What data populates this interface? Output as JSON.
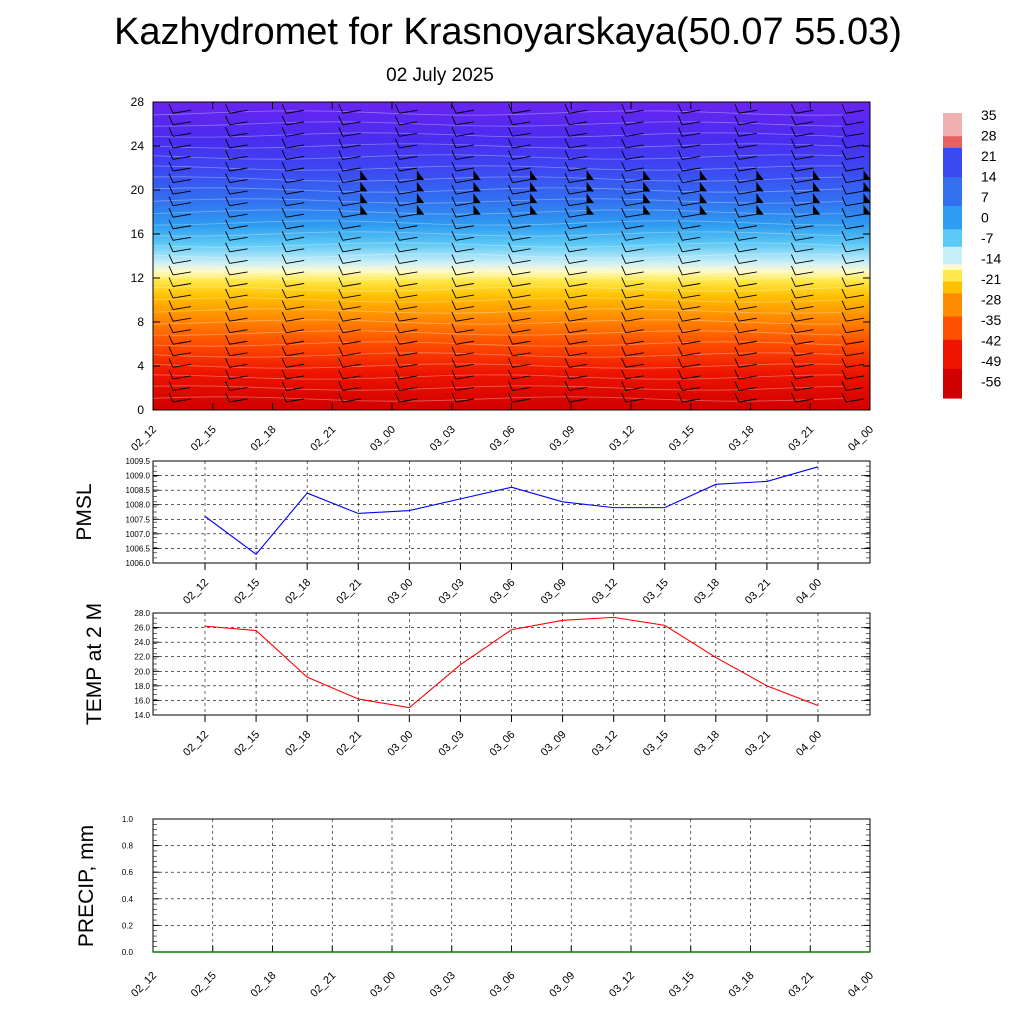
{
  "title": "Kazhydromet for Krasnoyarskaya(50.07 55.03)",
  "subtitle": "02 July 2025",
  "chart_data": [
    {
      "type": "heatmap",
      "x_ticks": [
        "02_12",
        "02_15",
        "02_18",
        "02_21",
        "03_00",
        "03_03",
        "03_06",
        "03_09",
        "03_12",
        "03_15",
        "03_18",
        "03_21",
        "04_00"
      ],
      "y_ticks": [
        0,
        4,
        8,
        12,
        16,
        20,
        24,
        28
      ],
      "ylim": [
        0,
        28
      ],
      "colorbar": {
        "labels": [
          "35",
          "28",
          "21",
          "14",
          "7",
          "0",
          "-7",
          "-14",
          "-21",
          "-28",
          "-35",
          "-42",
          "-49",
          "-56"
        ],
        "range": [
          -60,
          38
        ]
      },
      "colors": [
        "#6a1cf0",
        "#3f3ff2",
        "#2f6cf0",
        "#2f9ff0",
        "#33c3f2",
        "#8fdcf5",
        "#e8f4d8",
        "#fff27a",
        "#ffd21e",
        "#ffaa0a",
        "#ff7a00",
        "#ff4a00",
        "#f01a00",
        "#d80800",
        "#c80000"
      ]
    },
    {
      "type": "line",
      "ylabel": "PMSL",
      "categories": [
        "02_12",
        "02_15",
        "02_18",
        "02_21",
        "03_00",
        "03_03",
        "03_06",
        "03_09",
        "03_12",
        "03_15",
        "03_18",
        "03_21",
        "04_00"
      ],
      "values": [
        1007.6,
        1006.3,
        1008.4,
        1007.7,
        1007.8,
        1008.2,
        1008.6,
        1008.1,
        1007.9,
        1007.9,
        1008.7,
        1008.8,
        1009.3
      ],
      "y_ticks": [
        "1006.0",
        "1006.5",
        "1007.0",
        "1007.5",
        "1008.0",
        "1008.5",
        "1009.0",
        "1009.5"
      ],
      "ylim": [
        1006.0,
        1009.5
      ],
      "color": "#0000ff"
    },
    {
      "type": "line",
      "ylabel": "TEMP at 2 M",
      "categories": [
        "02_12",
        "02_15",
        "02_18",
        "02_21",
        "03_00",
        "03_03",
        "03_06",
        "03_09",
        "03_12",
        "03_15",
        "03_18",
        "03_21",
        "04_00"
      ],
      "values": [
        26.2,
        25.6,
        19.2,
        16.2,
        15.0,
        20.9,
        25.7,
        27.0,
        27.4,
        26.3,
        21.9,
        18.0,
        15.3
      ],
      "y_ticks": [
        "14.0",
        "16.0",
        "18.0",
        "20.0",
        "22.0",
        "24.0",
        "26.0",
        "28.0"
      ],
      "ylim": [
        14.0,
        28.0
      ],
      "color": "#ff0000"
    },
    {
      "type": "line",
      "ylabel": "PRECIP, mm",
      "categories": [
        "02_12",
        "02_15",
        "02_18",
        "02_21",
        "03_00",
        "03_03",
        "03_06",
        "03_09",
        "03_12",
        "03_15",
        "03_18",
        "03_21",
        "04_00"
      ],
      "values": [
        0,
        0,
        0,
        0,
        0,
        0,
        0,
        0,
        0,
        0,
        0,
        0,
        0
      ],
      "y_ticks": [
        "0.0",
        "0.2",
        "0.4",
        "0.6",
        "0.8",
        "1.0"
      ],
      "ylim": [
        0.0,
        1.0
      ],
      "color": "#008000"
    }
  ]
}
